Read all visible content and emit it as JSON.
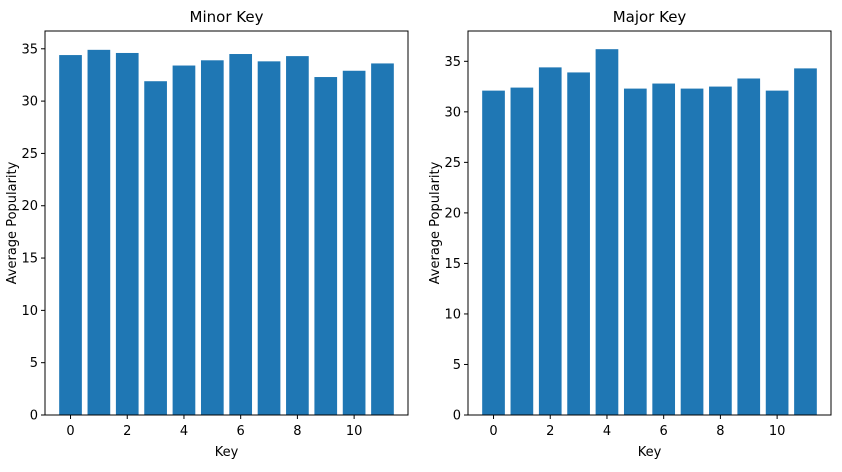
{
  "chart_data": [
    {
      "type": "bar",
      "title": "Minor Key",
      "xlabel": "Key",
      "ylabel": "Average Popularity",
      "categories": [
        0,
        1,
        2,
        3,
        4,
        5,
        6,
        7,
        8,
        9,
        10,
        11
      ],
      "values": [
        34.4,
        34.9,
        34.6,
        31.9,
        33.4,
        33.9,
        34.5,
        33.8,
        34.3,
        32.3,
        32.9,
        33.6
      ],
      "xlim": [
        -0.9,
        11.9
      ],
      "ylim": [
        0,
        36.7
      ],
      "xticks": [
        0,
        2,
        4,
        6,
        8,
        10
      ],
      "yticks": [
        0,
        5,
        10,
        15,
        20,
        25,
        30,
        35
      ],
      "bar_color": "#1f77b4",
      "grid": false,
      "legend": false
    },
    {
      "type": "bar",
      "title": "Major Key",
      "xlabel": "Key",
      "ylabel": "Average Popularity",
      "categories": [
        0,
        1,
        2,
        3,
        4,
        5,
        6,
        7,
        8,
        9,
        10,
        11
      ],
      "values": [
        32.1,
        32.4,
        34.4,
        33.9,
        36.2,
        32.3,
        32.8,
        32.3,
        32.5,
        33.3,
        32.1,
        34.3
      ],
      "xlim": [
        -0.9,
        11.9
      ],
      "ylim": [
        0,
        38.0
      ],
      "xticks": [
        0,
        2,
        4,
        6,
        8,
        10
      ],
      "yticks": [
        0,
        5,
        10,
        15,
        20,
        25,
        30,
        35
      ],
      "bar_color": "#1f77b4",
      "grid": false,
      "legend": false
    }
  ]
}
